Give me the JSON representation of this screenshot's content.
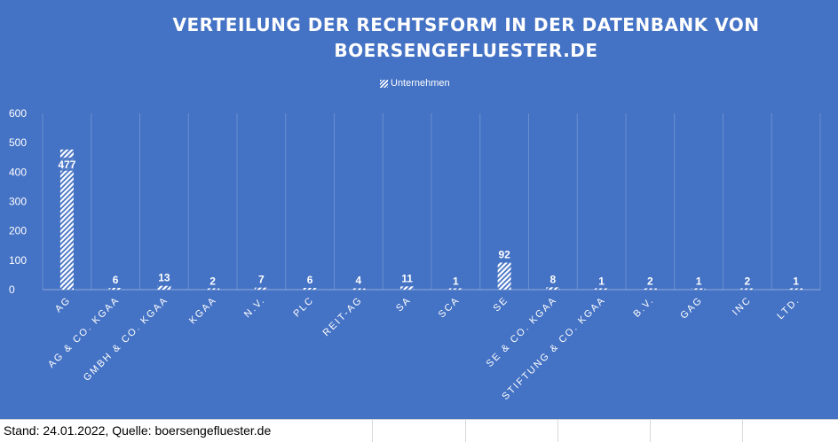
{
  "chart_data": {
    "type": "bar",
    "title": "VERTEILUNG DER RECHTSFORM IN DER DATENBANK VON BOERSENGEFLUESTER.DE",
    "categories": [
      "AG",
      "AG & CO. KGAA",
      "GMBH & CO. KGAA",
      "KGAA",
      "N.V.",
      "PLC",
      "REIT-AG",
      "SA",
      "SCA",
      "SE",
      "SE & CO. KGAA",
      "STIFTUNG & CO. KGAA",
      "B.V.",
      "GAG",
      "INC",
      "LTD."
    ],
    "series": [
      {
        "name": "Unternehmen",
        "values": [
          477,
          6,
          13,
          2,
          7,
          6,
          4,
          11,
          1,
          92,
          8,
          1,
          2,
          1,
          2,
          1
        ]
      }
    ],
    "ylim": [
      0,
      600
    ],
    "yticks": [
      0,
      100,
      200,
      300,
      400,
      500,
      600
    ],
    "xlabel": "",
    "ylabel": "",
    "grid": true,
    "legend_position": "top-center",
    "data_labels": true
  },
  "colors": {
    "background": "#4472c4",
    "bar_pattern": "white-diagonal-hatch",
    "text": "#ffffff"
  },
  "footer": {
    "source_note": "Stand: 24.01.2022, Quelle: boersengefluester.de"
  }
}
